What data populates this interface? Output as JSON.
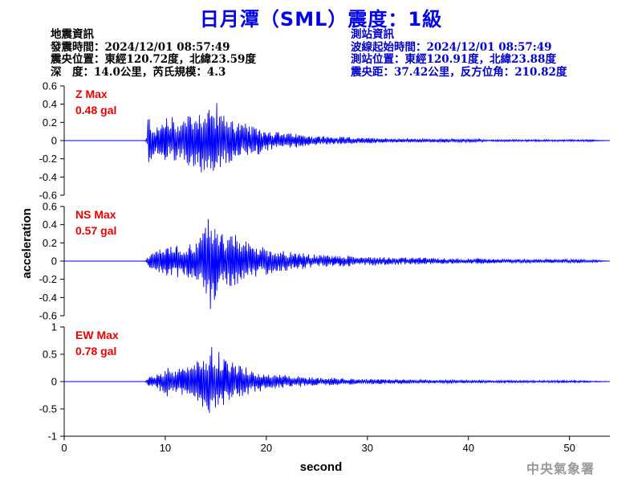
{
  "title": "日月潭（SML）震度：1級",
  "quake_info": {
    "heading": "地震資訊",
    "time": "發震時間：2024/12/01 08:57:49",
    "epicenter": "震央位置：東經120.72度，北緯23.59度",
    "depth_mag": "深　度：14.0公里，芮氏規模：4.3"
  },
  "station_info": {
    "heading": "測站資訊",
    "wave_start": "波線起始時間：2024/12/01 08:57:49",
    "location": "測站位置：東經120.91度，北緯23.88度",
    "distance": "震央距：37.42公里，反方位角：210.82度"
  },
  "watermark": "中央氣象署",
  "colors": {
    "title": "#0000ee",
    "trace": "#0000ff",
    "max_label": "#ee0000",
    "station_info": "#0000cc"
  },
  "chart_data": [
    {
      "type": "line",
      "channel": "Z",
      "max_title": "Z Max",
      "max_value": "0.48 gal",
      "ylim": [
        -0.6,
        0.6
      ],
      "yticks": [
        0.6,
        0.4,
        0.2,
        0,
        -0.2,
        -0.4,
        -0.6
      ],
      "ytick_labels": [
        "0.6",
        "0.4",
        "0.2",
        "0",
        "-0.2",
        "-0.4",
        "-0.6"
      ],
      "series": [
        {
          "values": [
            [
              0,
              0
            ],
            [
              8.0,
              0
            ],
            [
              8.2,
              0.04
            ],
            [
              8.3,
              -0.3
            ],
            [
              8.4,
              0.28
            ],
            [
              8.5,
              -0.25
            ],
            [
              8.7,
              0.2
            ],
            [
              8.9,
              -0.15
            ],
            [
              9.1,
              0.12
            ],
            [
              9.3,
              -0.18
            ],
            [
              9.5,
              0.15
            ],
            [
              9.7,
              -0.22
            ],
            [
              9.9,
              0.25
            ],
            [
              10.1,
              -0.3
            ],
            [
              10.3,
              0.2
            ],
            [
              10.5,
              -0.18
            ],
            [
              10.7,
              0.28
            ],
            [
              10.9,
              -0.25
            ],
            [
              11.1,
              0.2
            ],
            [
              11.3,
              -0.22
            ],
            [
              11.5,
              0.3
            ],
            [
              11.7,
              -0.28
            ],
            [
              11.9,
              0.24
            ],
            [
              12.1,
              -0.3
            ],
            [
              12.3,
              0.35
            ],
            [
              12.5,
              -0.32
            ],
            [
              12.7,
              0.3
            ],
            [
              12.9,
              -0.28
            ],
            [
              13.1,
              0.35
            ],
            [
              13.3,
              -0.3
            ],
            [
              13.5,
              0.38
            ],
            [
              13.7,
              -0.34
            ],
            [
              13.9,
              0.48
            ],
            [
              14.1,
              -0.35
            ],
            [
              14.3,
              0.4
            ],
            [
              14.5,
              -0.38
            ],
            [
              14.7,
              0.36
            ],
            [
              14.9,
              -0.32
            ],
            [
              15.1,
              0.42
            ],
            [
              15.3,
              -0.3
            ],
            [
              15.5,
              0.35
            ],
            [
              15.7,
              -0.28
            ],
            [
              15.9,
              0.3
            ],
            [
              16.1,
              -0.3
            ],
            [
              16.3,
              0.28
            ],
            [
              16.5,
              -0.25
            ],
            [
              16.7,
              0.25
            ],
            [
              16.9,
              -0.22
            ],
            [
              17.2,
              0.22
            ],
            [
              17.5,
              -0.2
            ],
            [
              17.8,
              0.18
            ],
            [
              18.1,
              -0.2
            ],
            [
              18.4,
              0.16
            ],
            [
              18.7,
              -0.15
            ],
            [
              19.0,
              0.14
            ],
            [
              19.3,
              -0.16
            ],
            [
              19.6,
              0.12
            ],
            [
              19.9,
              -0.12
            ],
            [
              20.3,
              0.12
            ],
            [
              20.7,
              -0.1
            ],
            [
              21.1,
              0.1
            ],
            [
              21.5,
              -0.09
            ],
            [
              21.9,
              0.08
            ],
            [
              22.3,
              -0.08
            ],
            [
              22.8,
              0.08
            ],
            [
              23.3,
              -0.07
            ],
            [
              23.8,
              0.06
            ],
            [
              24.3,
              -0.06
            ],
            [
              25.0,
              0.05
            ],
            [
              25.7,
              -0.05
            ],
            [
              26.5,
              0.04
            ],
            [
              27.3,
              -0.04
            ],
            [
              28.2,
              0.04
            ],
            [
              29.1,
              -0.03
            ],
            [
              30.0,
              0.03
            ],
            [
              31.5,
              -0.03
            ],
            [
              33.0,
              0.02
            ],
            [
              34.5,
              -0.02
            ],
            [
              36.0,
              0.02
            ],
            [
              38.0,
              -0.02
            ],
            [
              40.0,
              0.02
            ],
            [
              42.0,
              -0.01
            ],
            [
              44.0,
              0.01
            ],
            [
              46.0,
              -0.01
            ],
            [
              48.0,
              0.01
            ],
            [
              50.0,
              -0.01
            ],
            [
              52.0,
              0.01
            ],
            [
              54.0,
              0
            ]
          ]
        }
      ]
    },
    {
      "type": "line",
      "channel": "NS",
      "max_title": "NS Max",
      "max_value": "0.57 gal",
      "ylim": [
        -0.6,
        0.6
      ],
      "yticks": [
        0.6,
        0.4,
        0.2,
        0,
        -0.2,
        -0.4,
        -0.6
      ],
      "ytick_labels": [
        "0.6",
        "0.4",
        "0.2",
        "0",
        "-0.2",
        "-0.4",
        "-0.6"
      ],
      "series": [
        {
          "values": [
            [
              0,
              0
            ],
            [
              8.0,
              0
            ],
            [
              8.2,
              0.04
            ],
            [
              8.4,
              -0.06
            ],
            [
              8.6,
              0.1
            ],
            [
              8.8,
              -0.08
            ],
            [
              9.0,
              0.12
            ],
            [
              9.2,
              -0.15
            ],
            [
              9.4,
              0.14
            ],
            [
              9.6,
              -0.18
            ],
            [
              9.8,
              0.15
            ],
            [
              10.0,
              -0.14
            ],
            [
              10.3,
              0.18
            ],
            [
              10.6,
              -0.16
            ],
            [
              10.9,
              0.15
            ],
            [
              11.2,
              -0.18
            ],
            [
              11.5,
              0.16
            ],
            [
              11.8,
              -0.15
            ],
            [
              12.1,
              0.18
            ],
            [
              12.4,
              -0.2
            ],
            [
              12.7,
              0.18
            ],
            [
              13.0,
              -0.22
            ],
            [
              13.3,
              0.25
            ],
            [
              13.6,
              -0.3
            ],
            [
              13.9,
              0.4
            ],
            [
              14.2,
              -0.45
            ],
            [
              14.4,
              0.57
            ],
            [
              14.6,
              -0.48
            ],
            [
              14.8,
              0.52
            ],
            [
              15.0,
              -0.4
            ],
            [
              15.2,
              0.35
            ],
            [
              15.4,
              -0.38
            ],
            [
              15.7,
              0.3
            ],
            [
              16.0,
              -0.32
            ],
            [
              16.3,
              0.28
            ],
            [
              16.6,
              -0.28
            ],
            [
              16.9,
              0.3
            ],
            [
              17.2,
              -0.25
            ],
            [
              17.6,
              0.24
            ],
            [
              18.0,
              -0.22
            ],
            [
              18.4,
              0.2
            ],
            [
              18.8,
              -0.2
            ],
            [
              19.2,
              0.18
            ],
            [
              19.6,
              -0.16
            ],
            [
              20.0,
              0.15
            ],
            [
              20.5,
              -0.14
            ],
            [
              21.0,
              0.12
            ],
            [
              21.5,
              -0.12
            ],
            [
              22.0,
              0.11
            ],
            [
              22.5,
              -0.1
            ],
            [
              23.0,
              0.1
            ],
            [
              23.5,
              -0.09
            ],
            [
              24.0,
              0.08
            ],
            [
              25.0,
              -0.07
            ],
            [
              26.0,
              0.07
            ],
            [
              27.0,
              -0.06
            ],
            [
              28.0,
              0.06
            ],
            [
              29.5,
              -0.05
            ],
            [
              31.0,
              0.05
            ],
            [
              33.0,
              -0.04
            ],
            [
              35.0,
              0.04
            ],
            [
              37.0,
              -0.03
            ],
            [
              39.0,
              0.03
            ],
            [
              41.0,
              -0.03
            ],
            [
              43.0,
              0.02
            ],
            [
              45.0,
              -0.02
            ],
            [
              47.0,
              0.02
            ],
            [
              49.0,
              -0.02
            ],
            [
              51.0,
              0.02
            ],
            [
              53.0,
              -0.01
            ],
            [
              54.0,
              0
            ]
          ]
        }
      ]
    },
    {
      "type": "line",
      "channel": "EW",
      "max_title": "EW Max",
      "max_value": "0.78 gal",
      "ylim": [
        -1,
        1
      ],
      "yticks": [
        1,
        0.5,
        0,
        -0.5,
        -1
      ],
      "ytick_labels": [
        "1",
        "0.5",
        "0",
        "-0.5",
        "-1"
      ],
      "series": [
        {
          "values": [
            [
              0,
              0
            ],
            [
              8.0,
              0
            ],
            [
              8.2,
              0.05
            ],
            [
              8.4,
              -0.08
            ],
            [
              8.6,
              0.12
            ],
            [
              8.8,
              -0.1
            ],
            [
              9.0,
              0.15
            ],
            [
              9.2,
              -0.18
            ],
            [
              9.4,
              0.16
            ],
            [
              9.6,
              -0.2
            ],
            [
              9.8,
              0.22
            ],
            [
              10.0,
              -0.25
            ],
            [
              10.2,
              0.28
            ],
            [
              10.5,
              -0.26
            ],
            [
              10.8,
              0.24
            ],
            [
              11.1,
              -0.22
            ],
            [
              11.4,
              0.26
            ],
            [
              11.7,
              -0.24
            ],
            [
              12.0,
              0.28
            ],
            [
              12.3,
              -0.3
            ],
            [
              12.6,
              0.32
            ],
            [
              12.9,
              -0.3
            ],
            [
              13.2,
              0.4
            ],
            [
              13.5,
              -0.45
            ],
            [
              13.8,
              0.5
            ],
            [
              14.1,
              -0.55
            ],
            [
              14.4,
              0.6
            ],
            [
              14.7,
              -0.7
            ],
            [
              14.9,
              0.78
            ],
            [
              15.1,
              -0.65
            ],
            [
              15.3,
              0.58
            ],
            [
              15.5,
              -0.5
            ],
            [
              15.8,
              0.45
            ],
            [
              16.1,
              -0.4
            ],
            [
              16.4,
              0.38
            ],
            [
              16.7,
              -0.35
            ],
            [
              17.0,
              0.32
            ],
            [
              17.4,
              -0.3
            ],
            [
              17.8,
              0.28
            ],
            [
              18.2,
              -0.25
            ],
            [
              18.6,
              0.22
            ],
            [
              19.0,
              -0.2
            ],
            [
              19.5,
              0.18
            ],
            [
              20.0,
              -0.16
            ],
            [
              20.5,
              0.15
            ],
            [
              21.0,
              -0.14
            ],
            [
              21.5,
              0.12
            ],
            [
              22.0,
              -0.12
            ],
            [
              22.6,
              0.1
            ],
            [
              23.2,
              -0.1
            ],
            [
              23.8,
              0.09
            ],
            [
              24.5,
              -0.08
            ],
            [
              25.5,
              0.07
            ],
            [
              26.5,
              -0.07
            ],
            [
              27.5,
              0.06
            ],
            [
              29.0,
              -0.05
            ],
            [
              30.5,
              0.05
            ],
            [
              32.5,
              -0.04
            ],
            [
              34.5,
              0.04
            ],
            [
              36.5,
              -0.03
            ],
            [
              38.5,
              0.03
            ],
            [
              40.5,
              -0.03
            ],
            [
              42.5,
              0.02
            ],
            [
              44.5,
              -0.02
            ],
            [
              46.5,
              0.02
            ],
            [
              48.5,
              -0.02
            ],
            [
              50.5,
              0.02
            ],
            [
              52.5,
              -0.01
            ],
            [
              54.0,
              0
            ]
          ]
        }
      ]
    }
  ],
  "x_axis": {
    "label": "second",
    "xlim": [
      0,
      54
    ],
    "ticks": [
      0,
      10,
      20,
      30,
      40,
      50
    ],
    "tick_labels": [
      "0",
      "10",
      "20",
      "30",
      "40",
      "50"
    ]
  },
  "y_axis_label": "acceleration"
}
